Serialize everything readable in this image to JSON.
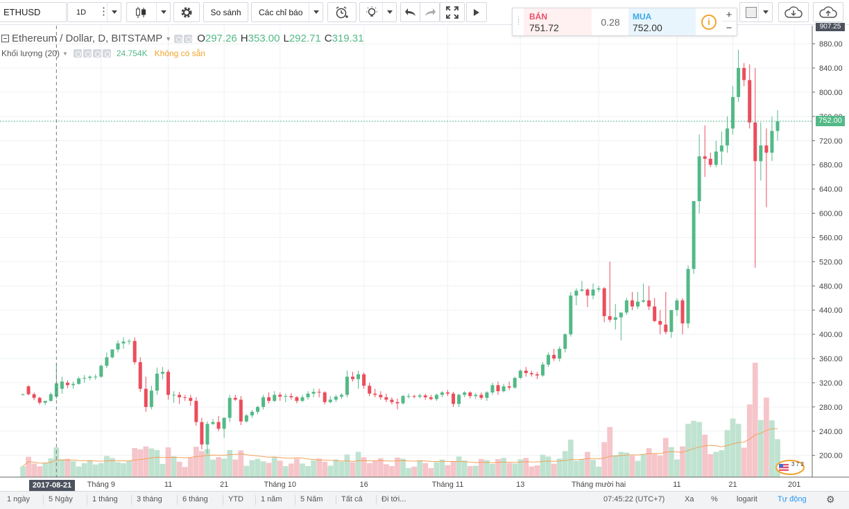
{
  "toolbar": {
    "symbol": "ETHUSD",
    "interval": "1D",
    "compare_label": "So sánh",
    "indicators_label": "Các chỉ báo",
    "icons": [
      "candlestick-icon",
      "gear-icon",
      "alarm-clock-icon",
      "light-bulb-icon",
      "undo-icon",
      "redo-icon",
      "fullscreen-icon",
      "play-icon",
      "cloud-download-icon",
      "cloud-upload-icon"
    ]
  },
  "trade": {
    "sell_label": "BÁN",
    "sell_price": "751.72",
    "spread": "0.28",
    "buy_label": "MUA",
    "buy_price": "752.00",
    "info_glyph": "i",
    "plus": "+",
    "minus": "−"
  },
  "legend": {
    "title": "Ethereum / Dollar, D, BITSTAMP",
    "o_key": "O",
    "o": "297.26",
    "h_key": "H",
    "h": "353.00",
    "l_key": "L",
    "l": "292.71",
    "c_key": "C",
    "c": "319.31",
    "volume_title": "Khối lượng (20)",
    "volume_value": "24.754K",
    "volume_na": "Không có sẵn"
  },
  "flags": {
    "crosshair_date": "2017-08-21",
    "last_price": "752.00",
    "top_price": "907.25"
  },
  "colors": {
    "up": "#53b987",
    "down": "#eb4d5c",
    "vol_up": "#bfe3d0",
    "vol_down": "#f5c5c9",
    "ma": "#f3a05a"
  },
  "chart_data": {
    "type": "candlestick",
    "ylim": [
      180,
      907.25
    ],
    "y_ticks": [
      "200.00",
      "240.00",
      "280.00",
      "320.00",
      "360.00",
      "400.00",
      "440.00",
      "480.00",
      "520.00",
      "560.00",
      "600.00",
      "640.00",
      "680.00",
      "720.00",
      "760.00",
      "800.00",
      "840.00",
      "880.00"
    ],
    "x_ticks": [
      "Tháng 9",
      "11",
      "21",
      "Tháng 10",
      "16",
      "Tháng 11",
      "13",
      "Tháng mười hai",
      "11",
      "21",
      "201"
    ],
    "ohlc": [
      [
        300,
        302,
        299,
        301
      ],
      [
        314,
        316,
        299,
        301
      ],
      [
        301,
        304,
        291,
        295
      ],
      [
        295,
        297,
        284,
        287
      ],
      [
        287,
        290,
        283,
        290
      ],
      [
        290,
        304,
        289,
        301
      ],
      [
        297,
        353,
        293,
        319
      ],
      [
        310,
        330,
        302,
        322
      ],
      [
        320,
        324,
        311,
        316
      ],
      [
        316,
        322,
        310,
        318
      ],
      [
        318,
        330,
        317,
        327
      ],
      [
        327,
        333,
        320,
        328
      ],
      [
        328,
        332,
        324,
        330
      ],
      [
        330,
        334,
        325,
        330
      ],
      [
        330,
        350,
        328,
        348
      ],
      [
        348,
        370,
        344,
        362
      ],
      [
        362,
        375,
        360,
        375
      ],
      [
        375,
        390,
        370,
        385
      ],
      [
        385,
        395,
        376,
        388
      ],
      [
        388,
        392,
        383,
        389
      ],
      [
        389,
        395,
        350,
        354
      ],
      [
        354,
        362,
        305,
        310
      ],
      [
        310,
        330,
        272,
        280
      ],
      [
        280,
        315,
        276,
        307
      ],
      [
        307,
        345,
        300,
        335
      ],
      [
        335,
        346,
        326,
        338
      ],
      [
        338,
        342,
        292,
        300
      ],
      [
        300,
        306,
        287,
        300
      ],
      [
        300,
        305,
        285,
        296
      ],
      [
        296,
        300,
        290,
        295
      ],
      [
        295,
        300,
        282,
        290
      ],
      [
        290,
        296,
        249,
        255
      ],
      [
        255,
        262,
        210,
        218
      ],
      [
        218,
        256,
        203,
        252
      ],
      [
        252,
        260,
        250,
        255
      ],
      [
        255,
        265,
        240,
        244
      ],
      [
        244,
        263,
        229,
        262
      ],
      [
        262,
        300,
        255,
        295
      ],
      [
        295,
        300,
        290,
        292
      ],
      [
        292,
        298,
        250,
        256
      ],
      [
        256,
        268,
        254,
        266
      ],
      [
        266,
        275,
        262,
        272
      ],
      [
        272,
        282,
        268,
        280
      ],
      [
        280,
        300,
        276,
        296
      ],
      [
        296,
        304,
        286,
        290
      ],
      [
        290,
        306,
        288,
        300
      ],
      [
        300,
        304,
        290,
        297
      ],
      [
        297,
        302,
        288,
        298
      ],
      [
        298,
        303,
        292,
        296
      ],
      [
        296,
        298,
        286,
        290
      ],
      [
        290,
        300,
        288,
        296
      ],
      [
        296,
        306,
        292,
        302
      ],
      [
        302,
        310,
        296,
        305
      ],
      [
        305,
        310,
        296,
        304
      ],
      [
        304,
        306,
        284,
        288
      ],
      [
        288,
        298,
        286,
        292
      ],
      [
        292,
        300,
        288,
        297
      ],
      [
        297,
        303,
        293,
        300
      ],
      [
        300,
        340,
        296,
        330
      ],
      [
        330,
        338,
        322,
        326
      ],
      [
        326,
        340,
        310,
        334
      ],
      [
        334,
        337,
        310,
        315
      ],
      [
        315,
        320,
        298,
        302
      ],
      [
        302,
        310,
        296,
        300
      ],
      [
        300,
        306,
        292,
        296
      ],
      [
        296,
        302,
        288,
        292
      ],
      [
        292,
        296,
        284,
        288
      ],
      [
        288,
        294,
        276,
        286
      ],
      [
        286,
        300,
        284,
        298
      ],
      [
        298,
        302,
        294,
        298
      ],
      [
        298,
        300,
        294,
        297
      ],
      [
        297,
        302,
        294,
        299
      ],
      [
        299,
        302,
        292,
        296
      ],
      [
        296,
        300,
        291,
        293
      ],
      [
        293,
        302,
        290,
        300
      ],
      [
        300,
        306,
        296,
        304
      ],
      [
        304,
        308,
        298,
        302
      ],
      [
        302,
        305,
        280,
        285
      ],
      [
        285,
        302,
        280,
        300
      ],
      [
        300,
        306,
        296,
        304
      ],
      [
        304,
        306,
        294,
        298
      ],
      [
        298,
        303,
        293,
        300
      ],
      [
        300,
        304,
        292,
        295
      ],
      [
        295,
        306,
        290,
        304
      ],
      [
        304,
        320,
        300,
        316
      ],
      [
        316,
        322,
        300,
        306
      ],
      [
        306,
        318,
        304,
        314
      ],
      [
        314,
        322,
        308,
        312
      ],
      [
        312,
        330,
        310,
        328
      ],
      [
        328,
        342,
        326,
        340
      ],
      [
        340,
        346,
        330,
        336
      ],
      [
        336,
        340,
        330,
        334
      ],
      [
        334,
        338,
        326,
        332
      ],
      [
        332,
        354,
        330,
        350
      ],
      [
        350,
        370,
        346,
        366
      ],
      [
        366,
        376,
        356,
        360
      ],
      [
        360,
        380,
        355,
        376
      ],
      [
        376,
        402,
        370,
        400
      ],
      [
        400,
        470,
        396,
        464
      ],
      [
        464,
        476,
        448,
        472
      ],
      [
        472,
        488,
        470,
        474
      ],
      [
        474,
        476,
        445,
        464
      ],
      [
        464,
        484,
        458,
        474
      ],
      [
        474,
        480,
        470,
        476
      ],
      [
        476,
        478,
        420,
        430
      ],
      [
        430,
        520,
        420,
        424
      ],
      [
        424,
        450,
        408,
        428
      ],
      [
        428,
        434,
        390,
        436
      ],
      [
        436,
        460,
        432,
        456
      ],
      [
        456,
        470,
        440,
        446
      ],
      [
        446,
        470,
        442,
        454
      ],
      [
        454,
        484,
        452,
        456
      ],
      [
        456,
        480,
        440,
        446
      ],
      [
        446,
        460,
        420,
        422
      ],
      [
        422,
        440,
        400,
        416
      ],
      [
        416,
        470,
        400,
        404
      ],
      [
        404,
        440,
        394,
        440
      ],
      [
        440,
        460,
        430,
        456
      ],
      [
        456,
        460,
        400,
        418
      ],
      [
        418,
        514,
        410,
        508
      ],
      [
        508,
        620,
        500,
        620
      ],
      [
        620,
        730,
        600,
        694
      ],
      [
        694,
        745,
        660,
        690
      ],
      [
        690,
        700,
        676,
        680
      ],
      [
        680,
        720,
        676,
        702
      ],
      [
        702,
        735,
        680,
        712
      ],
      [
        712,
        760,
        700,
        740
      ],
      [
        740,
        810,
        730,
        792
      ],
      [
        792,
        870,
        784,
        840
      ],
      [
        840,
        848,
        810,
        820
      ],
      [
        820,
        846,
        740,
        750
      ],
      [
        750,
        840,
        510,
        686
      ],
      [
        686,
        750,
        654,
        712
      ],
      [
        712,
        740,
        610,
        700
      ],
      [
        700,
        760,
        686,
        736
      ],
      [
        736,
        770,
        720,
        752
      ]
    ],
    "volume_ma": "20-period moving average of volume"
  }
}
